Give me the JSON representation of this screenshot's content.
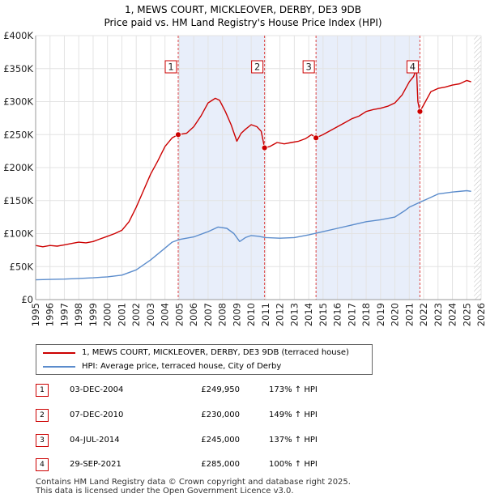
{
  "chart_data": {
    "type": "line",
    "title": "1, MEWS COURT, MICKLEOVER, DERBY, DE3 9DB",
    "subtitle": "Price paid vs. HM Land Registry's House Price Index (HPI)",
    "xlim": [
      1995,
      2026
    ],
    "ylim": [
      0,
      400000
    ],
    "x_ticks": [
      1995,
      1996,
      1997,
      1998,
      1999,
      2000,
      2001,
      2002,
      2003,
      2004,
      2005,
      2006,
      2007,
      2008,
      2009,
      2010,
      2011,
      2012,
      2013,
      2014,
      2015,
      2016,
      2017,
      2018,
      2019,
      2020,
      2021,
      2022,
      2023,
      2024,
      2025,
      2026
    ],
    "y_ticks": [
      {
        "value": 0,
        "label": "£0"
      },
      {
        "value": 50000,
        "label": "£50K"
      },
      {
        "value": 100000,
        "label": "£100K"
      },
      {
        "value": 150000,
        "label": "£150K"
      },
      {
        "value": 200000,
        "label": "£200K"
      },
      {
        "value": 250000,
        "label": "£250K"
      },
      {
        "value": 300000,
        "label": "£300K"
      },
      {
        "value": 350000,
        "label": "£350K"
      },
      {
        "value": 400000,
        "label": "£400K"
      }
    ],
    "series": [
      {
        "name": "1, MEWS COURT, MICKLEOVER, DERBY, DE3 9DB (terraced house)",
        "color": "#cc0000",
        "x": [
          1995.0,
          1995.5,
          1996.0,
          1996.5,
          1997.0,
          1997.5,
          1998.0,
          1998.5,
          1999.0,
          1999.5,
          2000.0,
          2000.5,
          2001.0,
          2001.5,
          2002.0,
          2002.5,
          2003.0,
          2003.5,
          2004.0,
          2004.5,
          2004.92,
          2005.5,
          2006.0,
          2006.5,
          2007.0,
          2007.5,
          2007.8,
          2008.2,
          2008.6,
          2009.0,
          2009.3,
          2009.6,
          2010.0,
          2010.4,
          2010.7,
          2010.93,
          2011.3,
          2011.8,
          2012.3,
          2012.8,
          2013.3,
          2013.8,
          2014.2,
          2014.51,
          2015.0,
          2015.5,
          2016.0,
          2016.5,
          2017.0,
          2017.5,
          2018.0,
          2018.5,
          2019.0,
          2019.5,
          2020.0,
          2020.5,
          2021.0,
          2021.3,
          2021.5,
          2021.6,
          2021.74,
          2022.0,
          2022.5,
          2023.0,
          2023.5,
          2024.0,
          2024.5,
          2025.0,
          2025.3
        ],
        "values": [
          82000,
          80000,
          82000,
          81000,
          83000,
          85000,
          87000,
          86000,
          88000,
          92000,
          96000,
          100000,
          105000,
          118000,
          140000,
          165000,
          190000,
          210000,
          232000,
          245000,
          249950,
          252000,
          262000,
          278000,
          298000,
          305000,
          302000,
          285000,
          265000,
          240000,
          252000,
          258000,
          265000,
          262000,
          255000,
          230000,
          232000,
          238000,
          236000,
          238000,
          240000,
          244000,
          250000,
          245000,
          250000,
          256000,
          262000,
          268000,
          274000,
          278000,
          285000,
          288000,
          290000,
          293000,
          298000,
          310000,
          330000,
          338000,
          350000,
          300000,
          285000,
          295000,
          315000,
          320000,
          322000,
          325000,
          327000,
          332000,
          330000
        ]
      },
      {
        "name": "HPI: Average price, terraced house, City of Derby",
        "color": "#5b8ccc",
        "x": [
          1995.0,
          1996.0,
          1997.0,
          1998.0,
          1999.0,
          2000.0,
          2001.0,
          2002.0,
          2003.0,
          2004.0,
          2004.5,
          2005.0,
          2006.0,
          2007.0,
          2007.7,
          2008.3,
          2008.8,
          2009.2,
          2009.6,
          2010.0,
          2010.5,
          2011.0,
          2012.0,
          2013.0,
          2014.0,
          2015.0,
          2016.0,
          2017.0,
          2018.0,
          2019.0,
          2020.0,
          2020.7,
          2021.0,
          2021.5,
          2022.0,
          2022.5,
          2023.0,
          2024.0,
          2025.0,
          2025.3
        ],
        "values": [
          30000,
          30500,
          31000,
          32000,
          33000,
          34500,
          37000,
          45000,
          60000,
          78000,
          87000,
          91000,
          95000,
          103000,
          110000,
          108000,
          100000,
          88000,
          94000,
          97000,
          96000,
          94000,
          93000,
          94000,
          98000,
          103000,
          108000,
          113000,
          118000,
          121000,
          125000,
          135000,
          140000,
          145000,
          150000,
          155000,
          160000,
          163000,
          165000,
          164000
        ]
      }
    ],
    "sales": [
      {
        "label": "1",
        "x": 2004.92,
        "value": 249950
      },
      {
        "label": "2",
        "x": 2010.93,
        "value": 230000
      },
      {
        "label": "3",
        "x": 2014.51,
        "value": 245000
      },
      {
        "label": "4",
        "x": 2021.74,
        "value": 285000
      }
    ],
    "shaded_ranges": [
      [
        2004.92,
        2010.93
      ],
      [
        2014.51,
        2021.74
      ]
    ],
    "hatched_from": 2025.5
  },
  "legend": {
    "property": "1, MEWS COURT, MICKLEOVER, DERBY, DE3 9DB (terraced house)",
    "hpi": "HPI: Average price, terraced house, City of Derby"
  },
  "table": [
    {
      "num": "1",
      "date": "03-DEC-2004",
      "price": "£249,950",
      "hpi": "173% ↑ HPI"
    },
    {
      "num": "2",
      "date": "07-DEC-2010",
      "price": "£230,000",
      "hpi": "149% ↑ HPI"
    },
    {
      "num": "3",
      "date": "04-JUL-2014",
      "price": "£245,000",
      "hpi": "137% ↑ HPI"
    },
    {
      "num": "4",
      "date": "29-SEP-2021",
      "price": "£285,000",
      "hpi": "100% ↑ HPI"
    }
  ],
  "footer": {
    "line1": "Contains HM Land Registry data © Crown copyright and database right 2025.",
    "line2": "This data is licensed under the Open Government Licence v3.0."
  },
  "colors": {
    "property": "#cc0000",
    "hpi": "#5b8ccc",
    "shade": "#e8eefa"
  }
}
